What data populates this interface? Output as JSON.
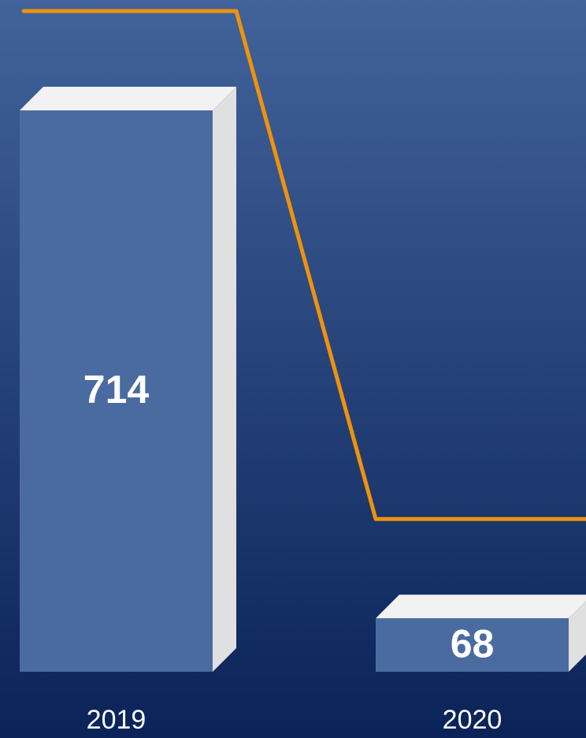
{
  "chart_data": {
    "type": "bar",
    "categories": [
      "2019",
      "2020"
    ],
    "values": [
      714,
      68
    ],
    "color": "#4a6ba0",
    "line_color": "#f0920c"
  }
}
